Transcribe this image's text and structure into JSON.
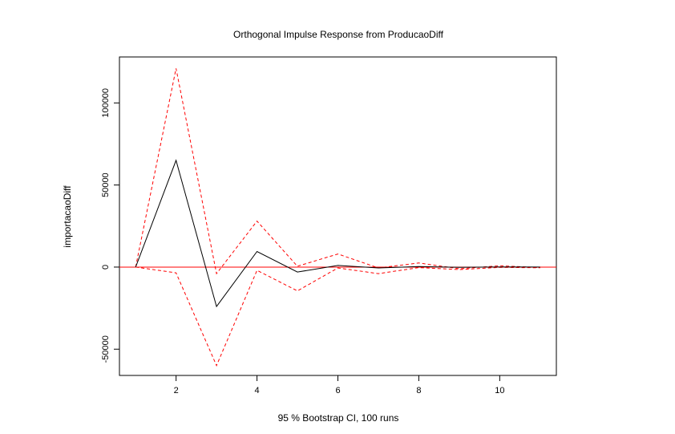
{
  "chart_data": {
    "type": "line",
    "title": "Orthogonal Impulse Response from ProducaoDiff",
    "xlabel": "95 % Bootstrap CI,  100 runs",
    "ylabel": "importacaoDiff",
    "xlim": [
      0.6,
      11.4
    ],
    "ylim": [
      -66000,
      128000
    ],
    "xticks": [
      2,
      4,
      6,
      8,
      10
    ],
    "yticks": [
      -50000,
      0,
      50000,
      100000
    ],
    "x": [
      1,
      2,
      3,
      4,
      5,
      6,
      7,
      8,
      9,
      10,
      11
    ],
    "series": [
      {
        "role": "response",
        "color": "#000000",
        "dash": "solid",
        "values": [
          0,
          65000,
          -24000,
          9500,
          -3000,
          1000,
          -500,
          300,
          -200,
          100,
          0
        ]
      },
      {
        "role": "upper",
        "color": "#ff0000",
        "dash": "dashed",
        "values": [
          0,
          121000,
          -4000,
          28000,
          500,
          8000,
          -500,
          2500,
          -1000,
          800,
          -300
        ]
      },
      {
        "role": "lower",
        "color": "#ff0000",
        "dash": "dashed",
        "values": [
          0,
          -3500,
          -60000,
          -2000,
          -14500,
          -500,
          -4000,
          -300,
          -1500,
          -200,
          -400
        ]
      }
    ],
    "zero_line": {
      "y": 0,
      "color": "#ff0000"
    },
    "grid": false,
    "legend": "none"
  }
}
